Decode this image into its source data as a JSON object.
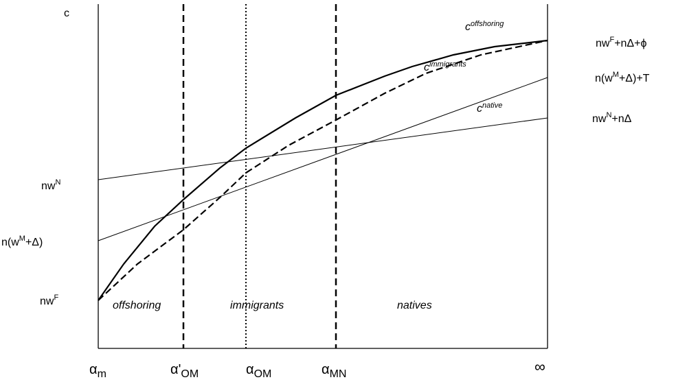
{
  "axis_label": "c",
  "left_labels": [
    [
      "nw",
      "N"
    ],
    [
      "n(w",
      "M",
      "+Δ)"
    ],
    [
      "nw",
      "F"
    ]
  ],
  "right_labels": [
    [
      "nw",
      "F",
      "+nΔ+ϕ"
    ],
    [
      "n(w",
      "M",
      "+Δ)+T"
    ],
    [
      "nw",
      "N",
      "+nΔ"
    ]
  ],
  "curve_labels": [
    [
      "c",
      "offshoring"
    ],
    [
      "c",
      "immigrants"
    ],
    [
      "c",
      "native"
    ]
  ],
  "regions": [
    "offshoring",
    "immigrants",
    "natives"
  ],
  "x_labels": [
    [
      "α",
      "m"
    ],
    [
      "α'",
      "OM"
    ],
    [
      "α",
      "OM"
    ],
    [
      "α",
      "MN"
    ],
    [
      "∞"
    ]
  ]
}
